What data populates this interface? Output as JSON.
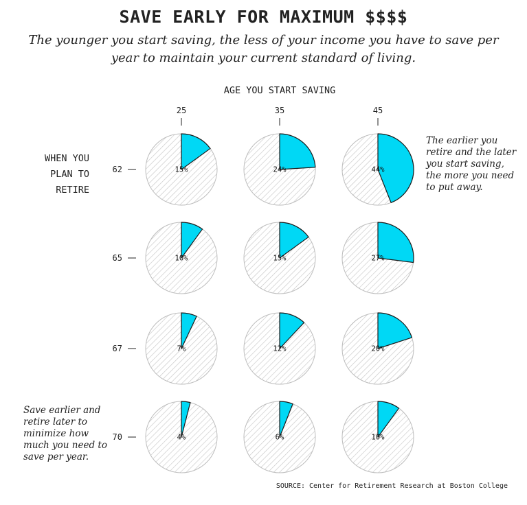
{
  "title": "SAVE EARLY FOR MAXIMUM $$$$",
  "subtitle": "The younger you start saving, the less of your income you have to save per year to maintain your current standard of living.",
  "annotations": {
    "right": "The earlier you retire and the later you start saving, the more you need to put away.",
    "left": "Save earlier and retire later to minimize how much you need to save per year."
  },
  "source": "SOURCE: Center for Retirement Research at Boston College",
  "colors": {
    "slice": "#00d8f5",
    "outline": "#1a1a1a",
    "hatch": "#c8c8c8",
    "pie_edge": "#bdbdbd"
  },
  "chart_data": {
    "type": "pie",
    "layout": "small-multiples grid",
    "xlabel": "AGE YOU START SAVING",
    "ylabel": "WHEN YOU PLAN TO RETIRE",
    "start_ages": [
      "25",
      "35",
      "45"
    ],
    "retire_ages": [
      "62",
      "65",
      "67",
      "70"
    ],
    "values": [
      [
        15,
        24,
        44
      ],
      [
        10,
        15,
        27
      ],
      [
        7,
        12,
        20
      ],
      [
        4,
        6,
        10
      ]
    ],
    "unit": "%"
  }
}
